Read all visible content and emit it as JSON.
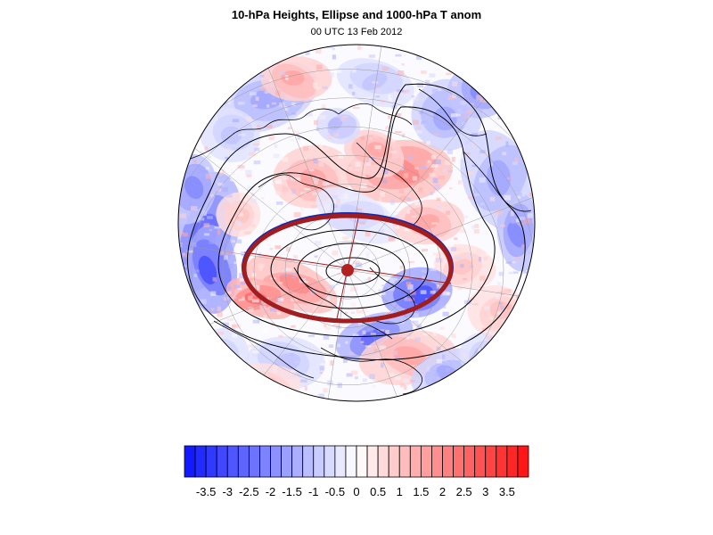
{
  "title": "10-hPa Heights, Ellipse and 1000-hPa T anom",
  "subtitle": "00 UTC 13 Feb 2012",
  "colorbar": {
    "ticks": [
      "-3.5",
      "-3",
      "-2.5",
      "-2",
      "-1.5",
      "-1",
      "-0.5",
      "0",
      "0.5",
      "1",
      "1.5",
      "2",
      "2.5",
      "3",
      "3.5"
    ],
    "min": -4,
    "max": 4,
    "step": 0.25,
    "neg_color": "#0a14ff",
    "pos_color": "#ff1010"
  },
  "ellipse": {
    "fill_outline": "#a11d20",
    "blue_outline": "#1028b0",
    "center_marker": "#b32020"
  },
  "map": {
    "projection": "polar stereographic",
    "hemisphere": "northern"
  }
}
